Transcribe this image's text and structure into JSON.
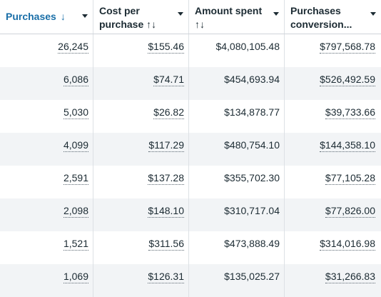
{
  "columns": [
    {
      "label": "Purchases",
      "label2": "",
      "sort_icon": "↓"
    },
    {
      "label": "Cost per",
      "label2": "purchase ↑↓"
    },
    {
      "label": "Amount spent",
      "label2": "↑↓"
    },
    {
      "label": "Purchases",
      "label2": "conversion..."
    }
  ],
  "rows": [
    {
      "purchases": "26,245",
      "cost": "$155.46",
      "spent": "$4,080,105.48",
      "conversion": "$797,568.78"
    },
    {
      "purchases": "6,086",
      "cost": "$74.71",
      "spent": "$454,693.94",
      "conversion": "$526,492.59"
    },
    {
      "purchases": "5,030",
      "cost": "$26.82",
      "spent": "$134,878.77",
      "conversion": "$39,733.66"
    },
    {
      "purchases": "4,099",
      "cost": "$117.29",
      "spent": "$480,754.10",
      "conversion": "$144,358.10"
    },
    {
      "purchases": "2,591",
      "cost": "$137.28",
      "spent": "$355,702.30",
      "conversion": "$77,105.28"
    },
    {
      "purchases": "2,098",
      "cost": "$148.10",
      "spent": "$310,717.04",
      "conversion": "$77,826.00"
    },
    {
      "purchases": "1,521",
      "cost": "$311.56",
      "spent": "$473,888.49",
      "conversion": "$314,016.98"
    },
    {
      "purchases": "1,069",
      "cost": "$126.31",
      "spent": "$135,025.27",
      "conversion": "$31,266.83"
    }
  ],
  "colors": {
    "sorted_header": "#1a6fa8",
    "alt_row": "#f2f4f6",
    "text": "#1c2b33"
  }
}
